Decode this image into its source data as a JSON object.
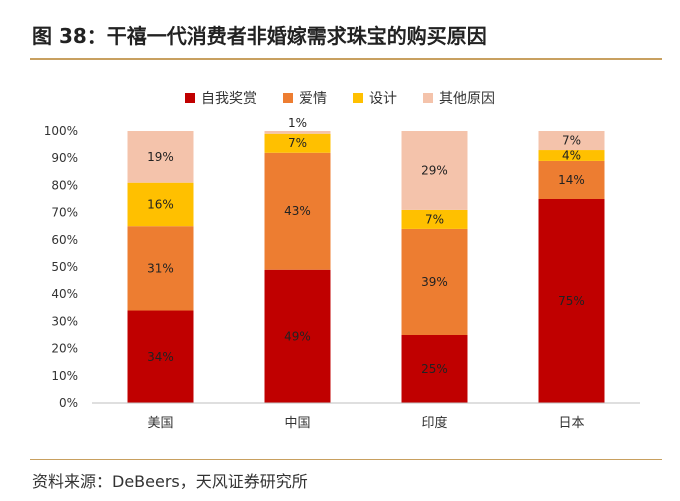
{
  "header": {
    "title": "图 38：干禧一代消费者非婚嫁需求珠宝的购买原因"
  },
  "footer": {
    "source": "资料来源：DeBeers，天风证券研究所"
  },
  "chart_data": {
    "type": "bar",
    "stacked": true,
    "percent": true,
    "categories": [
      "美国",
      "中国",
      "印度",
      "日本"
    ],
    "series": [
      {
        "name": "自我奖赏",
        "color": "#c00000",
        "values": [
          34,
          49,
          25,
          75
        ],
        "labels": [
          "34%",
          "49%",
          "25%",
          "75%"
        ]
      },
      {
        "name": "爱情",
        "color": "#ed7d31",
        "values": [
          31,
          43,
          39,
          14
        ],
        "labels": [
          "31%",
          "43%",
          "39%",
          "14%"
        ]
      },
      {
        "name": "设计",
        "color": "#ffc000",
        "values": [
          16,
          7,
          7,
          4
        ],
        "labels": [
          "16%",
          "7%",
          "7%",
          "4%"
        ]
      },
      {
        "name": "其他原因",
        "color": "#f4c3ab",
        "values": [
          19,
          1,
          29,
          7
        ],
        "labels": [
          "19%",
          "1%",
          "29%",
          "7%"
        ]
      }
    ],
    "ylim": [
      0,
      100
    ],
    "yticks": [
      "0%",
      "10%",
      "20%",
      "30%",
      "40%",
      "50%",
      "60%",
      "70%",
      "80%",
      "90%",
      "100%"
    ],
    "legend_position": "top",
    "grid": false
  }
}
